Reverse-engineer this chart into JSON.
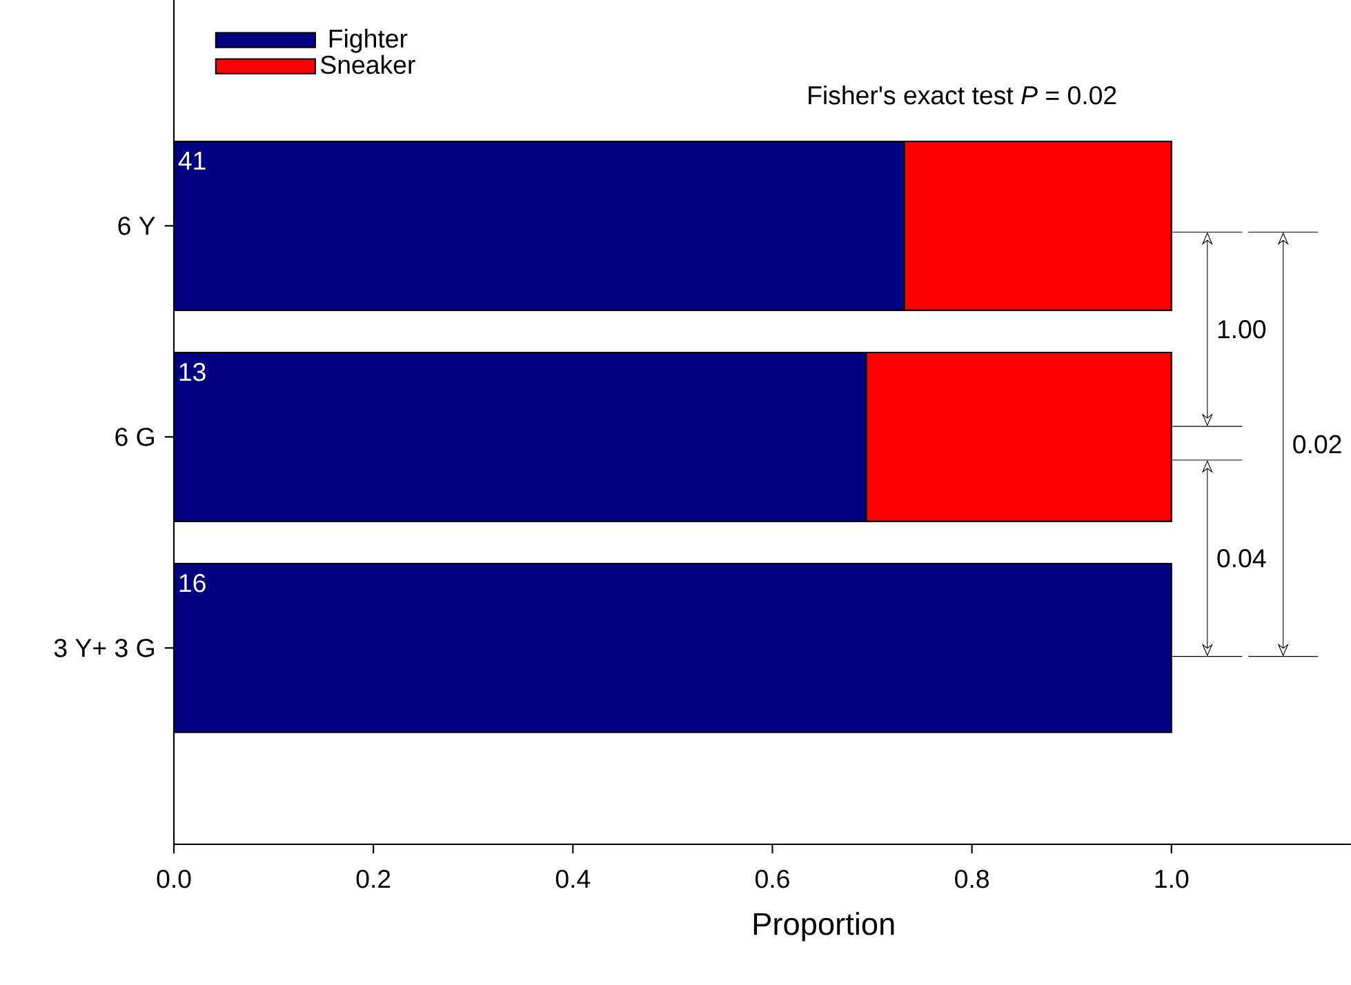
{
  "chart_data": {
    "type": "bar",
    "orientation": "horizontal",
    "stacked": true,
    "categories": [
      "6 Y",
      "6 G",
      "3 Y+ 3 G"
    ],
    "series": [
      {
        "name": "Fighter",
        "color": "#000080",
        "values": [
          0.732,
          0.694,
          1.0
        ]
      },
      {
        "name": "Sneaker",
        "color": "#ff0000",
        "values": [
          0.268,
          0.306,
          null
        ]
      }
    ],
    "xlim": [
      0,
      1.18
    ],
    "xticks": [
      {
        "value": 0,
        "label": "0.0"
      },
      {
        "value": 0.2,
        "label": "0.2"
      },
      {
        "value": 0.4,
        "label": "0.4"
      },
      {
        "value": 0.6,
        "label": "0.6"
      },
      {
        "value": 0.8,
        "label": "0.8"
      },
      {
        "value": 1.0,
        "label": "1.0"
      }
    ],
    "xlabel": "Proportion",
    "legend": "top left",
    "annotations": [
      "Fisher's exact test *P* = 0.02",
      "41",
      "13",
      "16",
      "1.00",
      "0.04",
      "0.02"
    ]
  }
}
